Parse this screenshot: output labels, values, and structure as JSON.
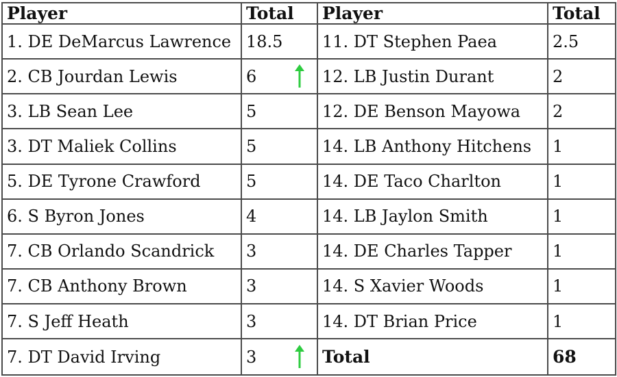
{
  "headers": {
    "player_left": "Player",
    "total_left": "Total",
    "player_right": "Player",
    "total_right": "Total"
  },
  "arrow_color": "#2ecc40",
  "icons": [
    "up-arrow-icon"
  ],
  "rows": [
    {
      "left_player": "1. DE DeMarcus Lawrence",
      "left_total": "18.5",
      "left_arrow": false,
      "right_player": "11. DT Stephen Paea",
      "right_total": "2.5"
    },
    {
      "left_player": "2. CB Jourdan Lewis",
      "left_total": "6",
      "left_arrow": true,
      "right_player": "12. LB Justin Durant",
      "right_total": "2"
    },
    {
      "left_player": "3. LB Sean Lee",
      "left_total": "5",
      "left_arrow": false,
      "right_player": "12. DE Benson Mayowa",
      "right_total": "2"
    },
    {
      "left_player": "3. DT Maliek Collins",
      "left_total": "5",
      "left_arrow": false,
      "right_player": "14. LB Anthony Hitchens",
      "right_total": "1"
    },
    {
      "left_player": "5. DE Tyrone Crawford",
      "left_total": "5",
      "left_arrow": false,
      "right_player": "14. DE Taco Charlton",
      "right_total": "1"
    },
    {
      "left_player": "6. S Byron Jones",
      "left_total": "4",
      "left_arrow": false,
      "right_player": "14. LB Jaylon Smith",
      "right_total": "1"
    },
    {
      "left_player": "7. CB Orlando Scandrick",
      "left_total": "3",
      "left_arrow": false,
      "right_player": "14. DE Charles Tapper",
      "right_total": "1"
    },
    {
      "left_player": "7. CB Anthony Brown",
      "left_total": "3",
      "left_arrow": false,
      "right_player": "14. S Xavier Woods",
      "right_total": "1"
    },
    {
      "left_player": "7. S Jeff Heath",
      "left_total": "3",
      "left_arrow": false,
      "right_player": "14. DT Brian Price",
      "right_total": "1"
    },
    {
      "left_player": "7. DT David Irving",
      "left_total": "3",
      "left_arrow": true,
      "right_player": "Total",
      "right_total": "68"
    }
  ]
}
